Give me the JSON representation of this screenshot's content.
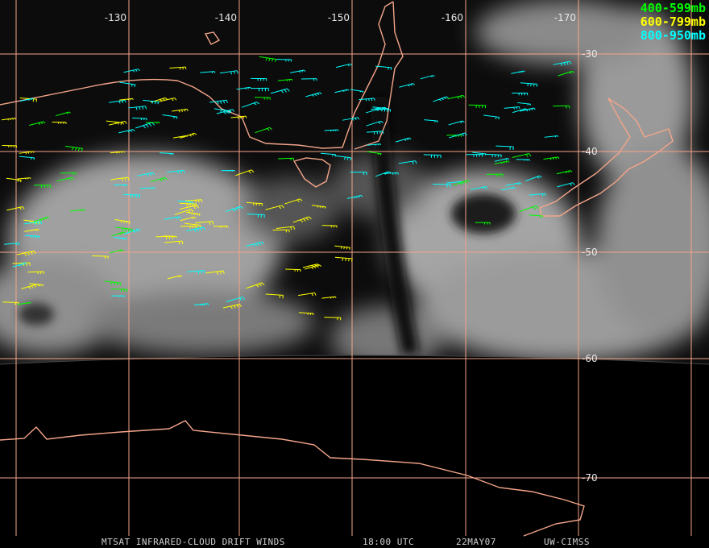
{
  "map": {
    "longitude_labels": [
      "-130",
      "-140",
      "-150",
      "-160",
      "-170"
    ],
    "latitude_labels": [
      "-30",
      "-40",
      "-50",
      "-60",
      "-70"
    ],
    "legend": [
      {
        "label": "400-599mb",
        "color": "#00ff00"
      },
      {
        "label": "600-799mb",
        "color": "#ffff00"
      },
      {
        "label": "800-950mb",
        "color": "#00ffff"
      }
    ],
    "footer": {
      "product": "MTSAT INFRARED-CLOUD DRIFT WINDS",
      "time": "18:00 UTC",
      "date": "22MAY07",
      "source": "UW-CIMSS"
    }
  }
}
